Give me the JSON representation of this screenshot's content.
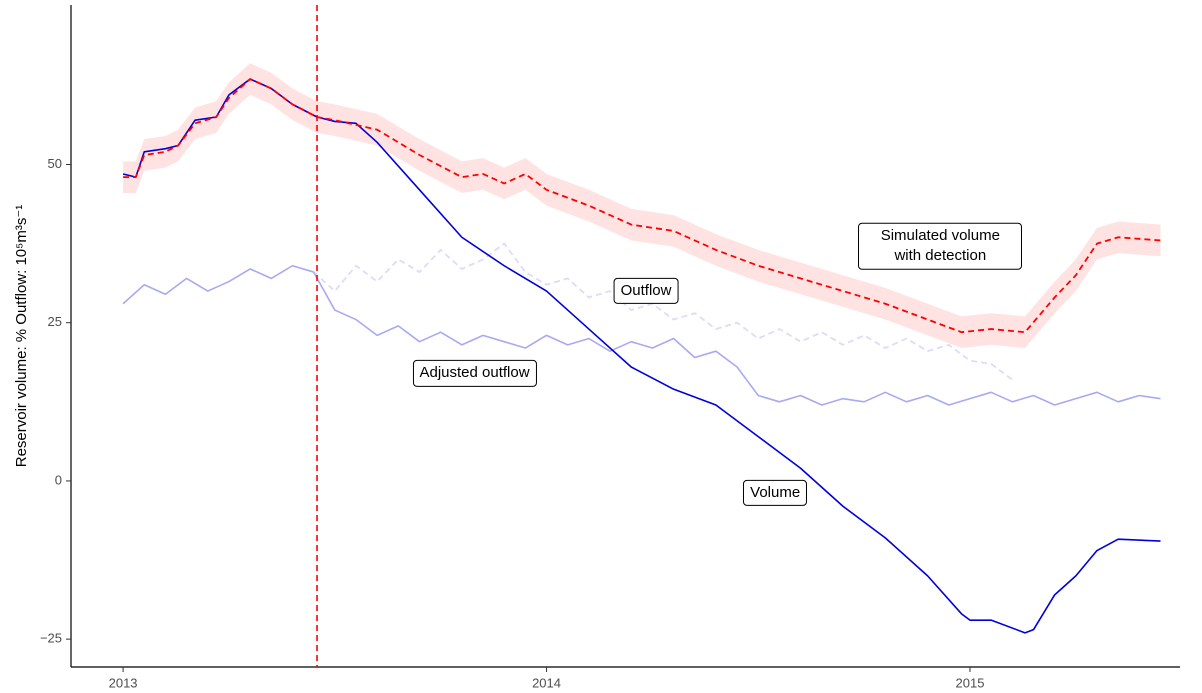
{
  "chart_data": {
    "type": "line",
    "ylabel": "Reservoir volume: % Outflow: 10⁵m³s⁻¹",
    "xlim": [
      2012.877,
      2015.496
    ],
    "xticks": [
      2013,
      2014,
      2015
    ],
    "ylim": [
      -29.4,
      75.2
    ],
    "yticks": [
      50,
      25,
      0,
      {
        "value": -25,
        "label": "−25"
      }
    ],
    "vline": 2013.458,
    "vline_color": "#ff0000",
    "series": [
      {
        "name": "Outflow",
        "color": "#dcdcfa",
        "dashed": true,
        "label_x": 2014.235,
        "label_y": 30,
        "x": [
          2013.45,
          2013.5,
          2013.55,
          2013.6,
          2013.65,
          2013.7,
          2013.75,
          2013.8,
          2013.85,
          2013.9,
          2013.95,
          2014.0,
          2014.05,
          2014.1,
          2014.15,
          2014.2,
          2014.25,
          2014.3,
          2014.35,
          2014.4,
          2014.45,
          2014.5,
          2014.55,
          2014.6,
          2014.65,
          2014.7,
          2014.75,
          2014.8,
          2014.85,
          2014.9,
          2014.95,
          2015.0,
          2015.05,
          2015.1
        ],
        "values": [
          33,
          30,
          34,
          31.5,
          35,
          33,
          36.5,
          33.5,
          35,
          37.5,
          33,
          31,
          32,
          29,
          30,
          27,
          28,
          25.5,
          26.5,
          24,
          25,
          22.5,
          24,
          22,
          23.5,
          21.5,
          23,
          21,
          22.5,
          20.5,
          21.5,
          19,
          18.5,
          16
        ]
      },
      {
        "name": "Adjusted outflow",
        "color": "#a9a9f2",
        "label_x": 2013.83,
        "label_y": 17,
        "x": [
          2013.0,
          2013.05,
          2013.1,
          2013.15,
          2013.2,
          2013.25,
          2013.3,
          2013.35,
          2013.4,
          2013.45,
          2013.5,
          2013.55,
          2013.6,
          2013.65,
          2013.7,
          2013.75,
          2013.8,
          2013.85,
          2013.9,
          2013.95,
          2014.0,
          2014.05,
          2014.1,
          2014.15,
          2014.2,
          2014.25,
          2014.3,
          2014.35,
          2014.4,
          2014.45,
          2014.5,
          2014.55,
          2014.6,
          2014.65,
          2014.7,
          2014.75,
          2014.8,
          2014.85,
          2014.9,
          2014.95,
          2015.0,
          2015.05,
          2015.1,
          2015.15,
          2015.2,
          2015.25,
          2015.3,
          2015.35,
          2015.4,
          2015.45
        ],
        "values": [
          28,
          31,
          29.5,
          32,
          30,
          31.5,
          33.5,
          32,
          34,
          33,
          27,
          25.5,
          23,
          24.5,
          22,
          23.5,
          21.5,
          23,
          22,
          21,
          23,
          21.5,
          22.5,
          20.5,
          22,
          21,
          22.5,
          19.5,
          20.5,
          18,
          13.5,
          12.5,
          13.5,
          12,
          13,
          12.5,
          14,
          12.5,
          13.5,
          12,
          13,
          14,
          12.5,
          13.5,
          12,
          13,
          14,
          12.5,
          13.5,
          13
        ]
      },
      {
        "name": "Volume",
        "color": "#0000dd",
        "label_x": 2014.54,
        "label_y": -1.9,
        "x": [
          2013.0,
          2013.03,
          2013.05,
          2013.1,
          2013.13,
          2013.17,
          2013.22,
          2013.25,
          2013.3,
          2013.35,
          2013.4,
          2013.458,
          2013.5,
          2013.55,
          2013.6,
          2013.7,
          2013.8,
          2013.9,
          2013.95,
          2014.0,
          2014.1,
          2014.2,
          2014.3,
          2014.4,
          2014.5,
          2014.6,
          2014.7,
          2014.8,
          2014.9,
          2014.98,
          2015.0,
          2015.05,
          2015.13,
          2015.15,
          2015.2,
          2015.25,
          2015.3,
          2015.35,
          2015.45
        ],
        "values": [
          48.5,
          48,
          52,
          52.5,
          53,
          57,
          57.5,
          61,
          63.5,
          62,
          59.5,
          57.5,
          56.8,
          56.5,
          53.5,
          46,
          38.5,
          34,
          32,
          30,
          24,
          18,
          14.5,
          12,
          7,
          2,
          -4,
          -9,
          -15,
          -21,
          -22,
          -22,
          -24,
          -23.5,
          -18,
          -15,
          -11,
          -9.2,
          -9.5
        ]
      },
      {
        "name": "Simulated volume with detection",
        "color": "#ff0000",
        "dashed": true,
        "ribbon_halfwidth": 2.5,
        "ribbon_color": "#ffdede",
        "label_x": 2014.93,
        "label_y": 37.1,
        "x": [
          2013.0,
          2013.03,
          2013.05,
          2013.1,
          2013.13,
          2013.17,
          2013.22,
          2013.25,
          2013.3,
          2013.35,
          2013.4,
          2013.458,
          2013.5,
          2013.6,
          2013.7,
          2013.8,
          2013.85,
          2013.9,
          2013.95,
          2014.0,
          2014.1,
          2014.2,
          2014.3,
          2014.4,
          2014.5,
          2014.6,
          2014.7,
          2014.8,
          2014.9,
          2014.98,
          2015.05,
          2015.13,
          2015.2,
          2015.25,
          2015.3,
          2015.35,
          2015.45
        ],
        "values": [
          48,
          48,
          51.5,
          52,
          53,
          56.5,
          57.5,
          60.5,
          63.5,
          62,
          59.5,
          57.5,
          57,
          55.5,
          51.5,
          48,
          48.5,
          47,
          48.5,
          46,
          43.5,
          40.5,
          39.5,
          36.5,
          34,
          32,
          30,
          28,
          25.5,
          23.5,
          24,
          23.5,
          29,
          32.5,
          37.5,
          38.5,
          38
        ]
      }
    ]
  }
}
